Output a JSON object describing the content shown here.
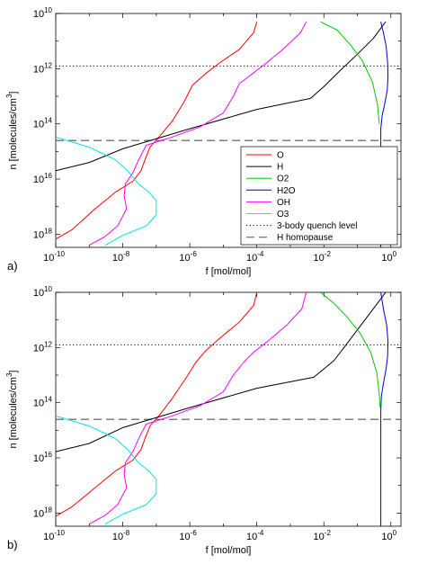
{
  "panels": [
    {
      "label": "a)",
      "xlabel": "f [mol/mol]",
      "ylabel_main": "n [molecules/cm",
      "ylabel_sup": "3",
      "ylabel_end": "]",
      "show_legend": true
    },
    {
      "label": "b)",
      "xlabel": "f [mol/mol]",
      "ylabel_main": "n [molecules/cm",
      "ylabel_sup": "3",
      "ylabel_end": "]",
      "show_legend": false
    }
  ],
  "axis_ticks": {
    "x": [
      {
        "exp": -10,
        "base": "10",
        "sup": "-10"
      },
      {
        "exp": -8,
        "base": "10",
        "sup": "-8"
      },
      {
        "exp": -6,
        "base": "10",
        "sup": "-6"
      },
      {
        "exp": -4,
        "base": "10",
        "sup": "-4"
      },
      {
        "exp": -2,
        "base": "10",
        "sup": "-2"
      },
      {
        "exp": 0,
        "base": "10",
        "sup": "0"
      }
    ],
    "y": [
      {
        "exp": 10,
        "base": "10",
        "sup": "10"
      },
      {
        "exp": 12,
        "base": "10",
        "sup": "12"
      },
      {
        "exp": 14,
        "base": "10",
        "sup": "14"
      },
      {
        "exp": 16,
        "base": "10",
        "sup": "16"
      },
      {
        "exp": 18,
        "base": "10",
        "sup": "18"
      }
    ]
  },
  "legend": [
    {
      "label": "O",
      "color": "#ff0000",
      "style": "solid"
    },
    {
      "label": "H",
      "color": "#000000",
      "style": "solid"
    },
    {
      "label": "O2",
      "color": "#00cc00",
      "style": "solid"
    },
    {
      "label": "H2O",
      "color": "#0000cc",
      "style": "solid"
    },
    {
      "label": "OH",
      "color": "#ff00ff",
      "style": "solid"
    },
    {
      "label": "O3",
      "color": "#00e5ee",
      "style": "solid"
    },
    {
      "label": "3-body quench level",
      "color": "#000000",
      "style": "dotted"
    },
    {
      "label": "H homopause",
      "color": "#000000",
      "style": "dashed"
    }
  ],
  "chart_data": [
    {
      "type": "line",
      "title": "",
      "xlabel": "f [mol/mol]",
      "ylabel": "n [molecules/cm3]",
      "x_scale": "log",
      "y_scale": "log",
      "y_reversed": true,
      "xlim": [
        1e-10,
        2
      ],
      "ylim": [
        10000000000.0,
        3e+18
      ],
      "grid": false,
      "legend_position": "lower-right",
      "hlines": [
        {
          "name": "3-body quench level",
          "y": 800000000000.0,
          "style": "dotted"
        },
        {
          "name": "H homopause",
          "y": 400000000000000.0,
          "style": "dashed"
        }
      ],
      "series": [
        {
          "name": "O",
          "color": "#ff0000",
          "points": [
            [
              0.0001,
              20000000000.0
            ],
            [
              8e-05,
              50000000000.0
            ],
            [
              3e-05,
              200000000000.0
            ],
            [
              8e-06,
              600000000000.0
            ],
            [
              3e-06,
              1500000000000.0
            ],
            [
              1.2e-06,
              4000000000000.0
            ],
            [
              7e-07,
              15000000000000.0
            ],
            [
              3e-07,
              80000000000000.0
            ],
            [
              1.2e-07,
              300000000000000.0
            ],
            [
              6.5e-08,
              700000000000000.0
            ],
            [
              4.6e-08,
              2000000000000000.0
            ],
            [
              3.5e-08,
              5000000000000000.0
            ],
            [
              2e-08,
              1.2e+16
            ],
            [
              6e-09,
              3e+16
            ],
            [
              1.5e-09,
              1.2e+17
            ],
            [
              3e-10,
              7e+17
            ],
            [
              1e-10,
              1.5e+18
            ]
          ]
        },
        {
          "name": "H",
          "color": "#000000",
          "points": [
            [
              0.7,
              20000000000.0
            ],
            [
              0.3,
              80000000000.0
            ],
            [
              0.1,
              300000000000.0
            ],
            [
              0.03,
              1200000000000.0
            ],
            [
              0.01,
              4500000000000.0
            ],
            [
              0.004,
              12000000000000.0
            ],
            [
              0.0001,
              30000000000000.0
            ],
            [
              1e-06,
              150000000000000.0
            ],
            [
              1e-08,
              800000000000000.0
            ],
            [
              1e-09,
              2500000000000000.0
            ],
            [
              1e-10,
              5000000000000000.0
            ]
          ]
        },
        {
          "name": "O2",
          "color": "#00cc00",
          "points": [
            [
              0.008,
              20000000000.0
            ],
            [
              0.025,
              40000000000.0
            ],
            [
              0.06,
              130000000000.0
            ],
            [
              0.14,
              500000000000.0
            ],
            [
              0.28,
              3000000000000.0
            ],
            [
              0.4,
              20000000000000.0
            ],
            [
              0.45,
              100000000000000.0
            ]
          ]
        },
        {
          "name": "H2O",
          "color": "#0000cc",
          "points": [
            [
              0.5,
              20000000000.0
            ],
            [
              0.6,
              50000000000.0
            ],
            [
              0.72,
              150000000000.0
            ],
            [
              0.8,
              600000000000.0
            ],
            [
              0.82,
              2000000000000.0
            ],
            [
              0.78,
              6000000000000.0
            ],
            [
              0.65,
              20000000000000.0
            ],
            [
              0.55,
              50000000000000.0
            ],
            [
              0.5,
              150000000000000.0
            ],
            [
              0.5,
              500000000000000.0
            ],
            [
              0.5,
              3e+18
            ]
          ]
        },
        {
          "name": "OH",
          "color": "#ff00ff",
          "points": [
            [
              0.003,
              20000000000.0
            ],
            [
              0.002,
              50000000000.0
            ],
            [
              0.0006,
              200000000000.0
            ],
            [
              0.0002,
              600000000000.0
            ],
            [
              7e-05,
              1600000000000.0
            ],
            [
              3e-05,
              3500000000000.0
            ],
            [
              2e-05,
              10000000000000.0
            ],
            [
              1e-05,
              40000000000000.0
            ],
            [
              2e-06,
              130000000000000.0
            ],
            [
              3e-07,
              300000000000000.0
            ],
            [
              5e-08,
              600000000000000.0
            ],
            [
              3e-08,
              2000000000000000.0
            ],
            [
              2e-08,
              6000000000000000.0
            ],
            [
              1.2e-08,
              1.5e+16
            ],
            [
              1.1e-08,
              4e+16
            ],
            [
              1.3e-08,
              1.2e+17
            ],
            [
              7e-09,
              5e+17
            ],
            [
              3e-09,
              1.2e+18
            ],
            [
              1e-09,
              2.5e+18
            ]
          ]
        },
        {
          "name": "O3",
          "color": "#00e5ee",
          "points": [
            [
              1e-10,
              300000000000000.0
            ],
            [
              1e-09,
              700000000000000.0
            ],
            [
              6e-09,
              2000000000000000.0
            ],
            [
              1.4e-08,
              5000000000000000.0
            ],
            [
              2.8e-08,
              1.4e+16
            ],
            [
              6e-08,
              3e+16
            ],
            [
              1e-07,
              6e+16
            ],
            [
              1e-07,
              2e+17
            ],
            [
              5e-08,
              5e+17
            ],
            [
              1e-08,
              1.1e+18
            ],
            [
              3e-09,
              2.5e+18
            ]
          ]
        }
      ]
    },
    {
      "type": "line",
      "title": "",
      "xlabel": "f [mol/mol]",
      "ylabel": "n [molecules/cm3]",
      "x_scale": "log",
      "y_scale": "log",
      "y_reversed": true,
      "xlim": [
        1e-10,
        2
      ],
      "ylim": [
        10000000000.0,
        3e+18
      ],
      "grid": false,
      "hlines": [
        {
          "name": "3-body quench level",
          "y": 800000000000.0,
          "style": "dotted"
        },
        {
          "name": "H homopause",
          "y": 400000000000000.0,
          "style": "dashed"
        }
      ],
      "series": [
        {
          "name": "O",
          "color": "#ff0000",
          "points": [
            [
              0.0001,
              10000000000.0
            ],
            [
              8e-05,
              30000000000.0
            ],
            [
              3e-05,
              120000000000.0
            ],
            [
              8e-06,
              450000000000.0
            ],
            [
              3e-06,
              1300000000000.0
            ],
            [
              1.5e-06,
              3500000000000.0
            ],
            [
              8e-07,
              12000000000000.0
            ],
            [
              3e-07,
              70000000000000.0
            ],
            [
              1.2e-07,
              300000000000000.0
            ],
            [
              6.5e-08,
              700000000000000.0
            ],
            [
              4.6e-08,
              2000000000000000.0
            ],
            [
              3.5e-08,
              5000000000000000.0
            ],
            [
              2e-08,
              1.2e+16
            ],
            [
              6e-09,
              3e+16
            ],
            [
              1.5e-09,
              1.2e+17
            ],
            [
              3e-10,
              6e+17
            ],
            [
              1e-10,
              1.3e+18
            ]
          ]
        },
        {
          "name": "H",
          "color": "#000000",
          "points": [
            [
              0.7,
              10000000000.0
            ],
            [
              0.4,
              25000000000.0
            ],
            [
              0.15,
              120000000000.0
            ],
            [
              0.05,
              700000000000.0
            ],
            [
              0.02,
              3000000000000.0
            ],
            [
              0.005,
              12000000000000.0
            ],
            [
              0.0001,
              30000000000000.0
            ],
            [
              1e-06,
              150000000000000.0
            ],
            [
              1e-08,
              800000000000000.0
            ],
            [
              1e-09,
              3000000000000000.0
            ],
            [
              1e-10,
              6000000000000000.0
            ]
          ]
        },
        {
          "name": "O2",
          "color": "#00cc00",
          "points": [
            [
              0.008,
              10000000000.0
            ],
            [
              0.02,
              25000000000.0
            ],
            [
              0.05,
              80000000000.0
            ],
            [
              0.12,
              300000000000.0
            ],
            [
              0.25,
              1500000000000.0
            ],
            [
              0.38,
              8000000000000.0
            ],
            [
              0.45,
              50000000000000.0
            ],
            [
              0.48,
              150000000000000.0
            ]
          ]
        },
        {
          "name": "H2O",
          "color": "#0000cc",
          "points": [
            [
              0.5,
              10000000000.0
            ],
            [
              0.6,
              40000000000.0
            ],
            [
              0.75,
              150000000000.0
            ],
            [
              0.82,
              600000000000.0
            ],
            [
              0.8,
              2000000000000.0
            ],
            [
              0.72,
              6000000000000.0
            ],
            [
              0.6,
              20000000000000.0
            ],
            [
              0.52,
              60000000000000.0
            ],
            [
              0.5,
              200000000000000.0
            ],
            [
              0.5,
              500000000000000.0
            ],
            [
              0.5,
              3e+18
            ]
          ]
        },
        {
          "name": "OH",
          "color": "#ff00ff",
          "points": [
            [
              0.003,
              10000000000.0
            ],
            [
              0.0022,
              40000000000.0
            ],
            [
              0.0008,
              150000000000.0
            ],
            [
              0.00025,
              500000000000.0
            ],
            [
              8e-05,
              1500000000000.0
            ],
            [
              4e-05,
              3500000000000.0
            ],
            [
              2e-05,
              10000000000000.0
            ],
            [
              1e-05,
              40000000000000.0
            ],
            [
              2e-06,
              130000000000000.0
            ],
            [
              3e-07,
              300000000000000.0
            ],
            [
              5e-08,
              600000000000000.0
            ],
            [
              3e-08,
              2000000000000000.0
            ],
            [
              2e-08,
              6000000000000000.0
            ],
            [
              1.2e-08,
              1.5e+16
            ],
            [
              1.1e-08,
              4e+16
            ],
            [
              1.3e-08,
              1.2e+17
            ],
            [
              7e-09,
              5e+17
            ],
            [
              3e-09,
              1.2e+18
            ],
            [
              1e-09,
              2.5e+18
            ]
          ]
        },
        {
          "name": "O3",
          "color": "#00e5ee",
          "points": [
            [
              1e-10,
              300000000000000.0
            ],
            [
              1e-09,
              700000000000000.0
            ],
            [
              6e-09,
              2000000000000000.0
            ],
            [
              1.4e-08,
              5000000000000000.0
            ],
            [
              2.8e-08,
              1.4e+16
            ],
            [
              6e-08,
              3e+16
            ],
            [
              1e-07,
              6e+16
            ],
            [
              1e-07,
              2e+17
            ],
            [
              5e-08,
              5e+17
            ],
            [
              1e-08,
              1.1e+18
            ],
            [
              3e-09,
              2.5e+18
            ]
          ]
        }
      ]
    }
  ]
}
